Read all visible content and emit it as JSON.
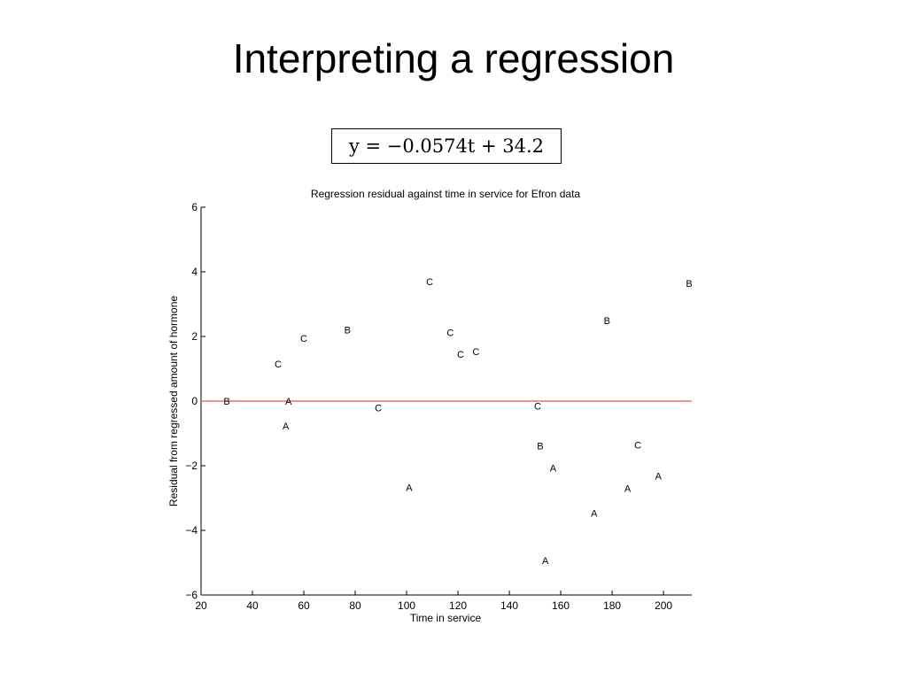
{
  "slide": {
    "title": "Interpreting a regression",
    "equation": "y = −0.0574t + 34.2"
  },
  "chart_data": {
    "type": "scatter",
    "title": "Regression residual against time in service for Efron data",
    "xlabel": "Time in service",
    "ylabel": "Residual from regressed amount of hormone",
    "xlim": [
      20,
      211
    ],
    "ylim": [
      -6,
      6
    ],
    "xticks": [
      20,
      40,
      60,
      80,
      100,
      120,
      140,
      160,
      180,
      200
    ],
    "yticks": [
      -6,
      -4,
      -2,
      0,
      2,
      4,
      6
    ],
    "grid": false,
    "reference_line": {
      "y": 0,
      "color": "#e8574e"
    },
    "point_color": "#000000",
    "points": [
      {
        "x": 30,
        "y": 0.0,
        "label": "B"
      },
      {
        "x": 54,
        "y": 0.0,
        "label": "A"
      },
      {
        "x": 53,
        "y": -0.77,
        "label": "A"
      },
      {
        "x": 50,
        "y": 1.15,
        "label": "C"
      },
      {
        "x": 60,
        "y": 1.95,
        "label": "C"
      },
      {
        "x": 77,
        "y": 2.21,
        "label": "B"
      },
      {
        "x": 89,
        "y": -0.21,
        "label": "C"
      },
      {
        "x": 101,
        "y": -2.67,
        "label": "A"
      },
      {
        "x": 109,
        "y": 3.7,
        "label": "C"
      },
      {
        "x": 117,
        "y": 2.13,
        "label": "C"
      },
      {
        "x": 121,
        "y": 1.45,
        "label": "C"
      },
      {
        "x": 127,
        "y": 1.53,
        "label": "C"
      },
      {
        "x": 151,
        "y": -0.15,
        "label": "C"
      },
      {
        "x": 152,
        "y": -1.38,
        "label": "B"
      },
      {
        "x": 157,
        "y": -2.07,
        "label": "A"
      },
      {
        "x": 154,
        "y": -4.93,
        "label": "A"
      },
      {
        "x": 173,
        "y": -3.46,
        "label": "A"
      },
      {
        "x": 178,
        "y": 2.5,
        "label": "B"
      },
      {
        "x": 186,
        "y": -2.7,
        "label": "A"
      },
      {
        "x": 190,
        "y": -1.35,
        "label": "C"
      },
      {
        "x": 198,
        "y": -2.32,
        "label": "A"
      },
      {
        "x": 210,
        "y": 3.65,
        "label": "B"
      }
    ]
  }
}
